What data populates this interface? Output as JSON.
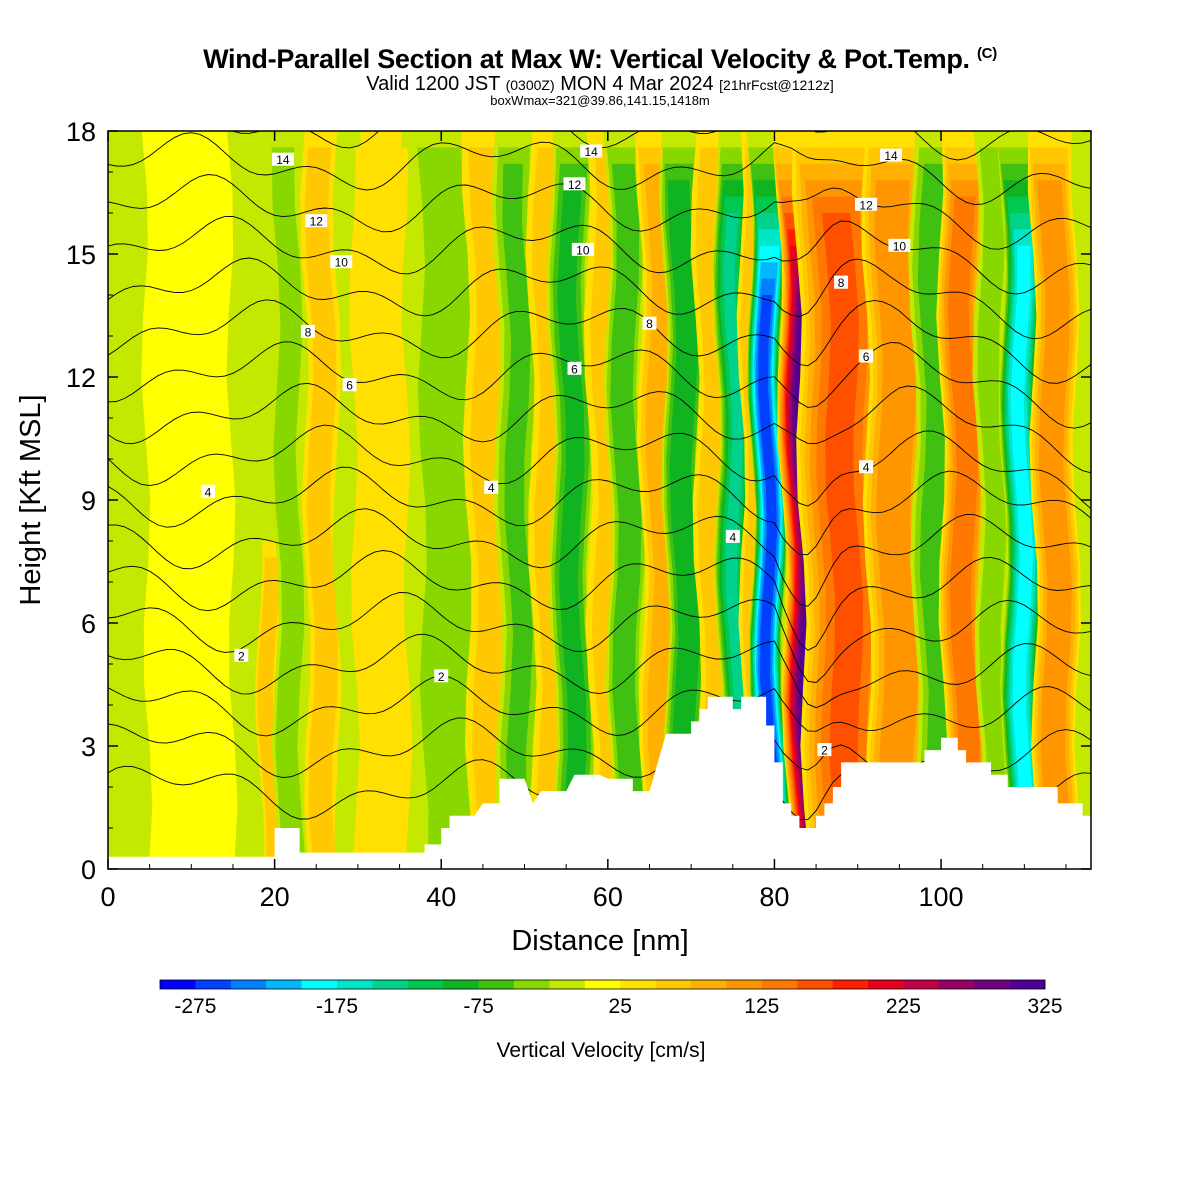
{
  "title": {
    "main": "Wind-Parallel Section at Max W: Vertical Velocity & Pot.Temp.",
    "copyright": "(C)",
    "valid_prefix": "Valid 1200 JST",
    "valid_utc": "(0300Z)",
    "valid_date": "MON 4 Mar 2024",
    "forecast": "[21hrFcst@1212z]",
    "subtitle": "boxWmax=321@39.86,141.15,1418m"
  },
  "chart_data": {
    "type": "heatmap",
    "xlabel": "Distance [nm]",
    "ylabel": "Height [Kft MSL]",
    "xlim": [
      0,
      118
    ],
    "ylim": [
      0,
      18
    ],
    "x_ticks": [
      "0",
      "20",
      "40",
      "60",
      "80",
      "100"
    ],
    "y_ticks": [
      "0",
      "3",
      "6",
      "9",
      "12",
      "15",
      "18"
    ],
    "colorbar": {
      "label": "Vertical Velocity [cm/s]",
      "tick_labels": [
        "-275",
        "-175",
        "-75",
        "25",
        "125",
        "225",
        "325"
      ],
      "colors": [
        "#0000ff",
        "#0040ff",
        "#0080ff",
        "#00b8ff",
        "#00ffff",
        "#00e6c8",
        "#00d28c",
        "#00c850",
        "#10b420",
        "#40c010",
        "#88d800",
        "#c4e800",
        "#ffff00",
        "#ffe000",
        "#ffc800",
        "#ffb000",
        "#ff9600",
        "#ff7800",
        "#ff5000",
        "#ff1e00",
        "#e6001e",
        "#be0046",
        "#960064",
        "#6e0082",
        "#500096"
      ]
    },
    "vertical_velocity_bands": [
      {
        "x": 10,
        "w": 3.2,
        "peak": 0,
        "top_kft": 18
      },
      {
        "x": 19.5,
        "w": 0.9,
        "peak": 60,
        "top_kft": 8
      },
      {
        "x": 22,
        "w": 1.3,
        "peak": -60,
        "top_kft": 18
      },
      {
        "x": 26,
        "w": 1.5,
        "peak": 50,
        "top_kft": 18
      },
      {
        "x": 29.5,
        "w": 1.5,
        "peak": -20,
        "top_kft": 11
      },
      {
        "x": 33,
        "w": 2.5,
        "peak": 15,
        "top_kft": 18
      },
      {
        "x": 39.5,
        "w": 0.8,
        "peak": 55,
        "top_kft": 7
      },
      {
        "x": 41.5,
        "w": 3.5,
        "peak": -55,
        "top_kft": 18
      },
      {
        "x": 46,
        "w": 2.0,
        "peak": 45,
        "top_kft": 18
      },
      {
        "x": 49.5,
        "w": 1.8,
        "peak": -65,
        "top_kft": 18
      },
      {
        "x": 53,
        "w": 1.5,
        "peak": 40,
        "top_kft": 18
      },
      {
        "x": 56,
        "w": 1.7,
        "peak": -95,
        "top_kft": 18
      },
      {
        "x": 60,
        "w": 1.6,
        "peak": 40,
        "top_kft": 18
      },
      {
        "x": 62.5,
        "w": 1.5,
        "peak": -85,
        "top_kft": 18
      },
      {
        "x": 66.5,
        "w": 1.6,
        "peak": 70,
        "top_kft": 18
      },
      {
        "x": 69.5,
        "w": 1.6,
        "peak": -110,
        "top_kft": 18
      },
      {
        "x": 73,
        "w": 1.6,
        "peak": 50,
        "top_kft": 18
      },
      {
        "x": 75.5,
        "w": 1.4,
        "peak": -140,
        "top_kft": 18
      },
      {
        "x": 77.5,
        "w": 0.9,
        "peak": 40,
        "top_kft": 18
      },
      {
        "x": 79.5,
        "w": 1.3,
        "peak": -275,
        "top_kft": 18
      },
      {
        "x": 85,
        "w": 2.2,
        "peak": 320,
        "top_kft": 18
      },
      {
        "x": 89,
        "w": 3.5,
        "peak": 140,
        "top_kft": 18
      },
      {
        "x": 95,
        "w": 2.5,
        "peak": 110,
        "top_kft": 18
      },
      {
        "x": 99.5,
        "w": 1.8,
        "peak": -70,
        "top_kft": 18
      },
      {
        "x": 103,
        "w": 1.8,
        "peak": 130,
        "top_kft": 18
      },
      {
        "x": 106.5,
        "w": 1.4,
        "peak": -50,
        "top_kft": 18
      },
      {
        "x": 110,
        "w": 1.5,
        "peak": -200,
        "top_kft": 18
      },
      {
        "x": 114,
        "w": 1.8,
        "peak": 110,
        "top_kft": 18
      }
    ],
    "terrain_kft": [
      {
        "x": 0,
        "y": 0.3
      },
      {
        "x": 20,
        "y": 0.3
      },
      {
        "x": 20,
        "y": 1.0
      },
      {
        "x": 23,
        "y": 1.0
      },
      {
        "x": 23,
        "y": 0.4
      },
      {
        "x": 38,
        "y": 0.4
      },
      {
        "x": 38,
        "y": 0.6
      },
      {
        "x": 40,
        "y": 0.6
      },
      {
        "x": 40,
        "y": 1.0
      },
      {
        "x": 41,
        "y": 1.0
      },
      {
        "x": 41,
        "y": 1.3
      },
      {
        "x": 44,
        "y": 1.3
      },
      {
        "x": 45,
        "y": 1.6
      },
      {
        "x": 47,
        "y": 1.6
      },
      {
        "x": 47,
        "y": 2.2
      },
      {
        "x": 50,
        "y": 2.2
      },
      {
        "x": 51,
        "y": 1.6
      },
      {
        "x": 52,
        "y": 1.9
      },
      {
        "x": 55,
        "y": 1.9
      },
      {
        "x": 56,
        "y": 2.3
      },
      {
        "x": 59,
        "y": 2.3
      },
      {
        "x": 60,
        "y": 2.2
      },
      {
        "x": 63,
        "y": 2.2
      },
      {
        "x": 63,
        "y": 1.9
      },
      {
        "x": 65,
        "y": 1.9
      },
      {
        "x": 66,
        "y": 2.6
      },
      {
        "x": 67,
        "y": 3.3
      },
      {
        "x": 70,
        "y": 3.3
      },
      {
        "x": 70,
        "y": 3.6
      },
      {
        "x": 71,
        "y": 3.6
      },
      {
        "x": 71,
        "y": 3.9
      },
      {
        "x": 72,
        "y": 3.9
      },
      {
        "x": 72,
        "y": 4.2
      },
      {
        "x": 75,
        "y": 4.2
      },
      {
        "x": 75,
        "y": 3.9
      },
      {
        "x": 76,
        "y": 3.9
      },
      {
        "x": 76,
        "y": 4.2
      },
      {
        "x": 79,
        "y": 4.2
      },
      {
        "x": 79,
        "y": 3.5
      },
      {
        "x": 80,
        "y": 3.5
      },
      {
        "x": 80,
        "y": 2.6
      },
      {
        "x": 81,
        "y": 2.6
      },
      {
        "x": 81,
        "y": 1.6
      },
      {
        "x": 82,
        "y": 1.6
      },
      {
        "x": 82,
        "y": 1.3
      },
      {
        "x": 83,
        "y": 1.3
      },
      {
        "x": 83,
        "y": 1.0
      },
      {
        "x": 85,
        "y": 1.0
      },
      {
        "x": 85,
        "y": 1.3
      },
      {
        "x": 86,
        "y": 1.3
      },
      {
        "x": 86,
        "y": 1.6
      },
      {
        "x": 87,
        "y": 1.6
      },
      {
        "x": 87,
        "y": 2.0
      },
      {
        "x": 88,
        "y": 2.0
      },
      {
        "x": 88,
        "y": 2.6
      },
      {
        "x": 98,
        "y": 2.6
      },
      {
        "x": 98,
        "y": 2.9
      },
      {
        "x": 100,
        "y": 2.9
      },
      {
        "x": 100,
        "y": 3.2
      },
      {
        "x": 102,
        "y": 3.2
      },
      {
        "x": 102,
        "y": 2.9
      },
      {
        "x": 103,
        "y": 2.9
      },
      {
        "x": 103,
        "y": 2.6
      },
      {
        "x": 106,
        "y": 2.6
      },
      {
        "x": 106,
        "y": 2.3
      },
      {
        "x": 108,
        "y": 2.3
      },
      {
        "x": 108,
        "y": 2.0
      },
      {
        "x": 114,
        "y": 2.0
      },
      {
        "x": 114,
        "y": 1.6
      },
      {
        "x": 117,
        "y": 1.6
      },
      {
        "x": 117,
        "y": 1.3
      },
      {
        "x": 118,
        "y": 1.3
      }
    ],
    "pot_temp_contours": {
      "levels": [
        1,
        2,
        3,
        4,
        5,
        6,
        7,
        8,
        9,
        10,
        11,
        12,
        13,
        14,
        15,
        16,
        17
      ],
      "labeled": [
        {
          "level": 2,
          "text": "2",
          "x": 16,
          "y": 5.2
        },
        {
          "level": 2,
          "text": "2",
          "x": 40,
          "y": 4.7
        },
        {
          "level": 2,
          "text": "2",
          "x": 86,
          "y": 2.9
        },
        {
          "level": 4,
          "text": "4",
          "x": 12,
          "y": 9.2
        },
        {
          "level": 4,
          "text": "4",
          "x": 46,
          "y": 9.3
        },
        {
          "level": 4,
          "text": "4",
          "x": 75,
          "y": 8.1
        },
        {
          "level": 4,
          "text": "4",
          "x": 91,
          "y": 9.8
        },
        {
          "level": 6,
          "text": "6",
          "x": 29,
          "y": 11.8
        },
        {
          "level": 6,
          "text": "6",
          "x": 56,
          "y": 12.2
        },
        {
          "level": 6,
          "text": "6",
          "x": 91,
          "y": 12.5
        },
        {
          "level": 8,
          "text": "8",
          "x": 24,
          "y": 13.1
        },
        {
          "level": 8,
          "text": "8",
          "x": 65,
          "y": 13.3
        },
        {
          "level": 8,
          "text": "8",
          "x": 88,
          "y": 14.3
        },
        {
          "level": 10,
          "text": "10",
          "x": 28,
          "y": 14.8
        },
        {
          "level": 10,
          "text": "10",
          "x": 57,
          "y": 15.1
        },
        {
          "level": 10,
          "text": "10",
          "x": 95,
          "y": 15.2
        },
        {
          "level": 12,
          "text": "12",
          "x": 25,
          "y": 15.8
        },
        {
          "level": 12,
          "text": "12",
          "x": 56,
          "y": 16.7
        },
        {
          "level": 12,
          "text": "12",
          "x": 91,
          "y": 16.2
        },
        {
          "level": 14,
          "text": "14",
          "x": 21,
          "y": 17.3
        },
        {
          "level": 14,
          "text": "14",
          "x": 58,
          "y": 17.5
        },
        {
          "level": 14,
          "text": "14",
          "x": 94,
          "y": 17.4
        }
      ]
    }
  }
}
